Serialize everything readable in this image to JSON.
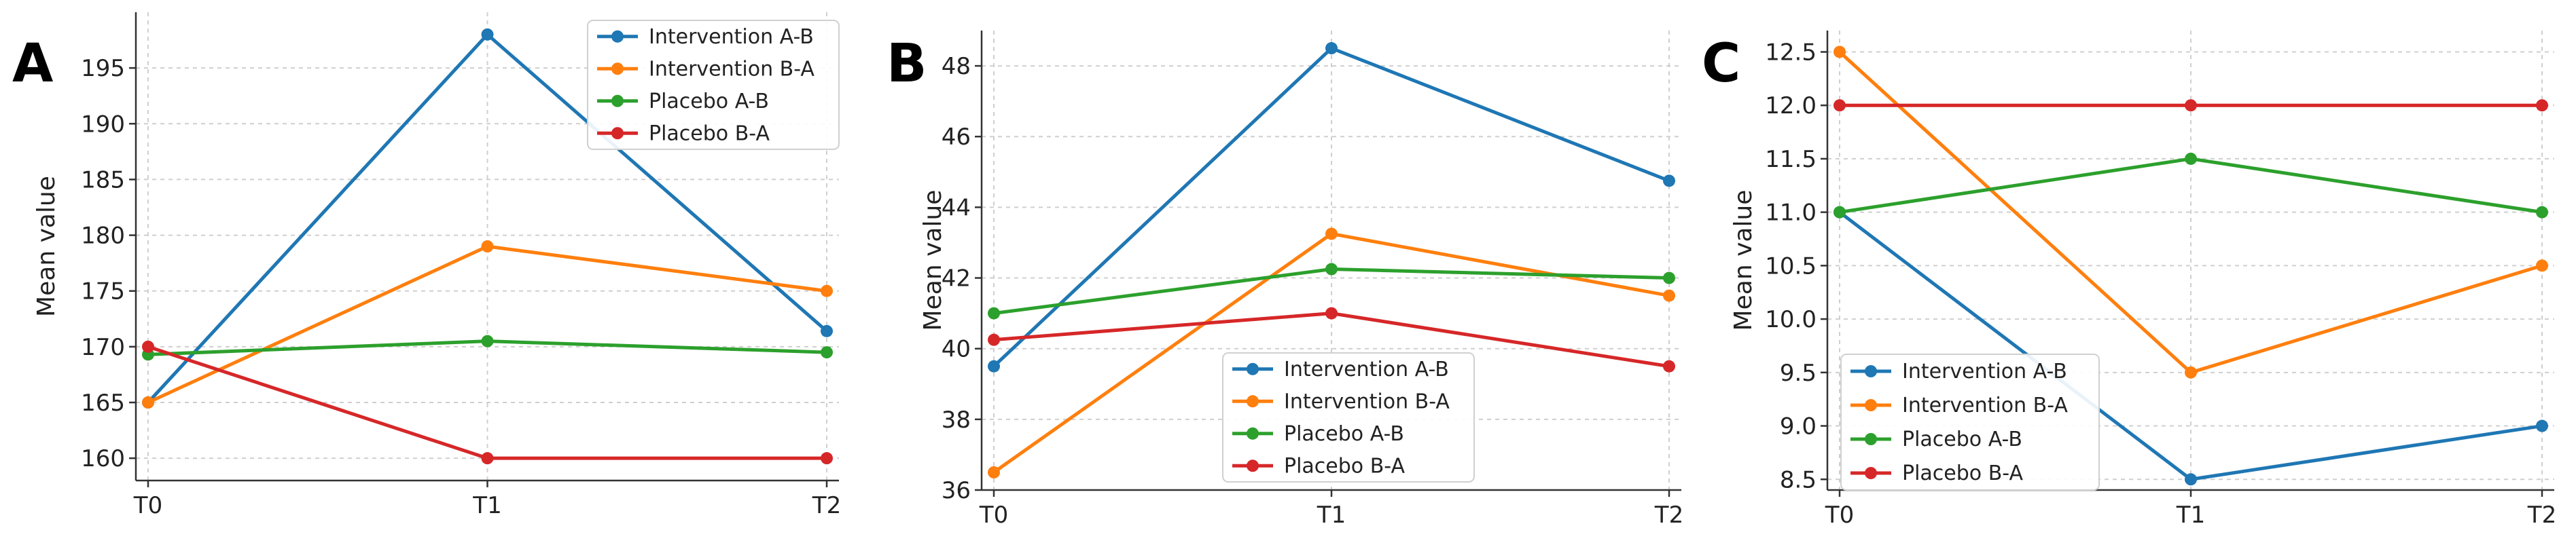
{
  "chart_data": [
    {
      "panel_label": "A",
      "type": "line",
      "ylabel": "Mean value",
      "xlabel": "",
      "categories": [
        "T0",
        "T1",
        "T2"
      ],
      "ylim": [
        158,
        200
      ],
      "yticks": [
        160,
        165,
        170,
        175,
        180,
        185,
        190,
        195
      ],
      "ytick_labels": [
        "160",
        "165",
        "170",
        "175",
        "180",
        "185",
        "190",
        "195"
      ],
      "grid": true,
      "legend_position": "top-right",
      "series": [
        {
          "name": "Intervention A-B",
          "color": "#1f77b4",
          "values": [
            165.0,
            198.0,
            171.4
          ]
        },
        {
          "name": "Intervention B-A",
          "color": "#ff7f0e",
          "values": [
            165.0,
            179.0,
            175.0
          ]
        },
        {
          "name": "Placebo A-B",
          "color": "#2ca02c",
          "values": [
            169.3,
            170.5,
            169.5
          ]
        },
        {
          "name": "Placebo B-A",
          "color": "#d62728",
          "values": [
            170.0,
            160.0,
            160.0
          ]
        }
      ]
    },
    {
      "panel_label": "B",
      "type": "line",
      "ylabel": "Mean value",
      "xlabel": "",
      "categories": [
        "T0",
        "T1",
        "T2"
      ],
      "ylim": [
        36,
        49
      ],
      "yticks": [
        36,
        38,
        40,
        42,
        44,
        46,
        48
      ],
      "ytick_labels": [
        "36",
        "38",
        "40",
        "42",
        "44",
        "46",
        "48"
      ],
      "grid": true,
      "legend_position": "bottom-center",
      "series": [
        {
          "name": "Intervention A-B",
          "color": "#1f77b4",
          "values": [
            39.5,
            48.5,
            44.75
          ]
        },
        {
          "name": "Intervention B-A",
          "color": "#ff7f0e",
          "values": [
            36.5,
            43.25,
            41.5
          ]
        },
        {
          "name": "Placebo A-B",
          "color": "#2ca02c",
          "values": [
            41.0,
            42.25,
            42.0
          ]
        },
        {
          "name": "Placebo B-A",
          "color": "#d62728",
          "values": [
            40.25,
            41.0,
            39.5
          ]
        }
      ]
    },
    {
      "panel_label": "C",
      "type": "line",
      "ylabel": "Mean value",
      "xlabel": "",
      "categories": [
        "T0",
        "T1",
        "T2"
      ],
      "ylim": [
        8.4,
        12.7
      ],
      "yticks": [
        8.5,
        9.0,
        9.5,
        10.0,
        10.5,
        11.0,
        11.5,
        12.0,
        12.5
      ],
      "ytick_labels": [
        "8.5",
        "9.0",
        "9.5",
        "10.0",
        "10.5",
        "11.0",
        "11.5",
        "12.0",
        "12.5"
      ],
      "grid": true,
      "legend_position": "bottom-left",
      "series": [
        {
          "name": "Intervention A-B",
          "color": "#1f77b4",
          "values": [
            11.0,
            8.5,
            9.0
          ]
        },
        {
          "name": "Intervention B-A",
          "color": "#ff7f0e",
          "values": [
            12.5,
            9.5,
            10.5
          ]
        },
        {
          "name": "Placebo A-B",
          "color": "#2ca02c",
          "values": [
            11.0,
            11.5,
            11.0
          ]
        },
        {
          "name": "Placebo B-A",
          "color": "#d62728",
          "values": [
            12.0,
            12.0,
            12.0
          ]
        }
      ]
    }
  ]
}
